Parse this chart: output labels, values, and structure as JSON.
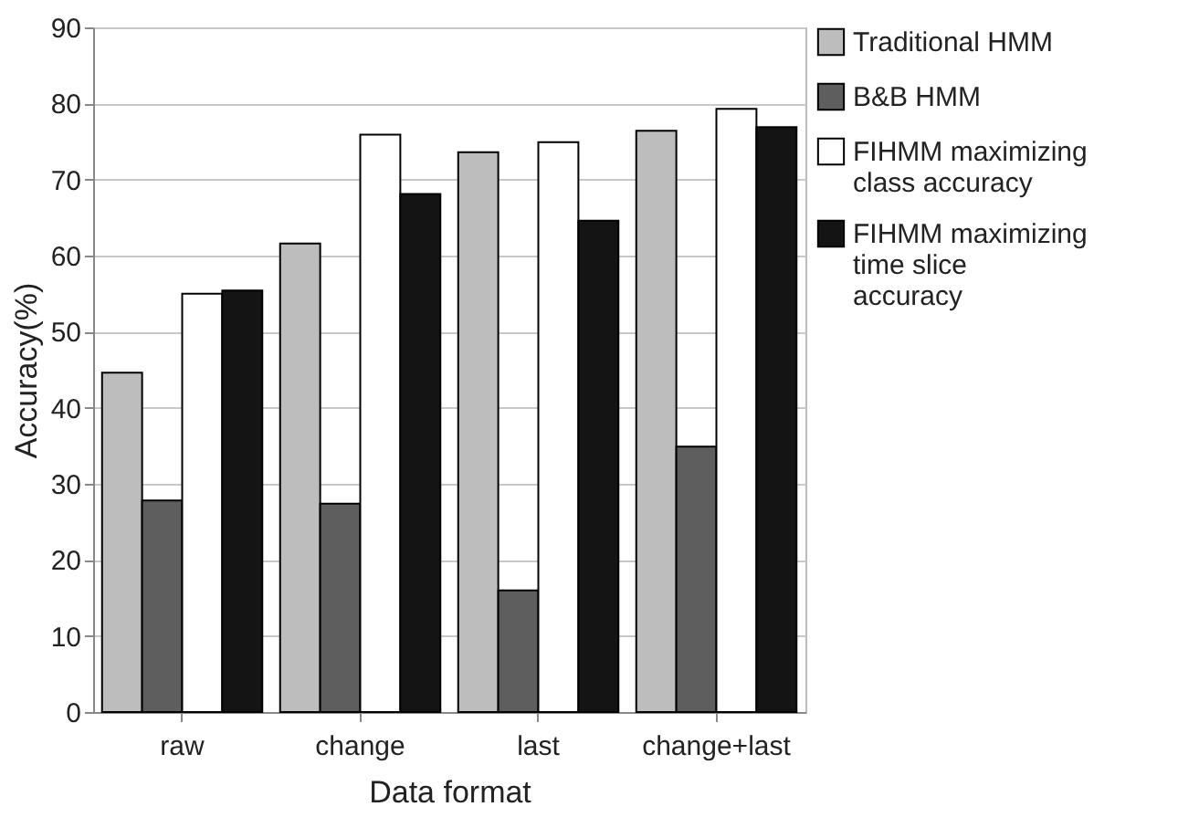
{
  "chart_data": {
    "type": "bar",
    "xlabel": "Data format",
    "ylabel": "Accuracy(%)",
    "categories": [
      "raw",
      "change",
      "last",
      "change+last"
    ],
    "series": [
      {
        "name": "Traditional HMM",
        "color": "#bdbdbd",
        "values": [
          44.6,
          61.6,
          73.6,
          76.4
        ]
      },
      {
        "name": "B&B HMM",
        "color": "#5e5e5e",
        "values": [
          27.8,
          27.4,
          16.0,
          34.9
        ]
      },
      {
        "name": "FIHMM maximizing class accuracy",
        "color": "#ffffff",
        "values": [
          55.0,
          75.9,
          74.9,
          79.3
        ]
      },
      {
        "name": "FIHMM maximizing time slice accuracy",
        "color": "#141414",
        "values": [
          55.4,
          68.1,
          64.6,
          76.9
        ]
      }
    ],
    "ylim": [
      0,
      90
    ],
    "yticks": [
      0,
      10,
      20,
      30,
      40,
      50,
      60,
      70,
      80,
      90
    ],
    "grid": "y",
    "legend": "right"
  }
}
